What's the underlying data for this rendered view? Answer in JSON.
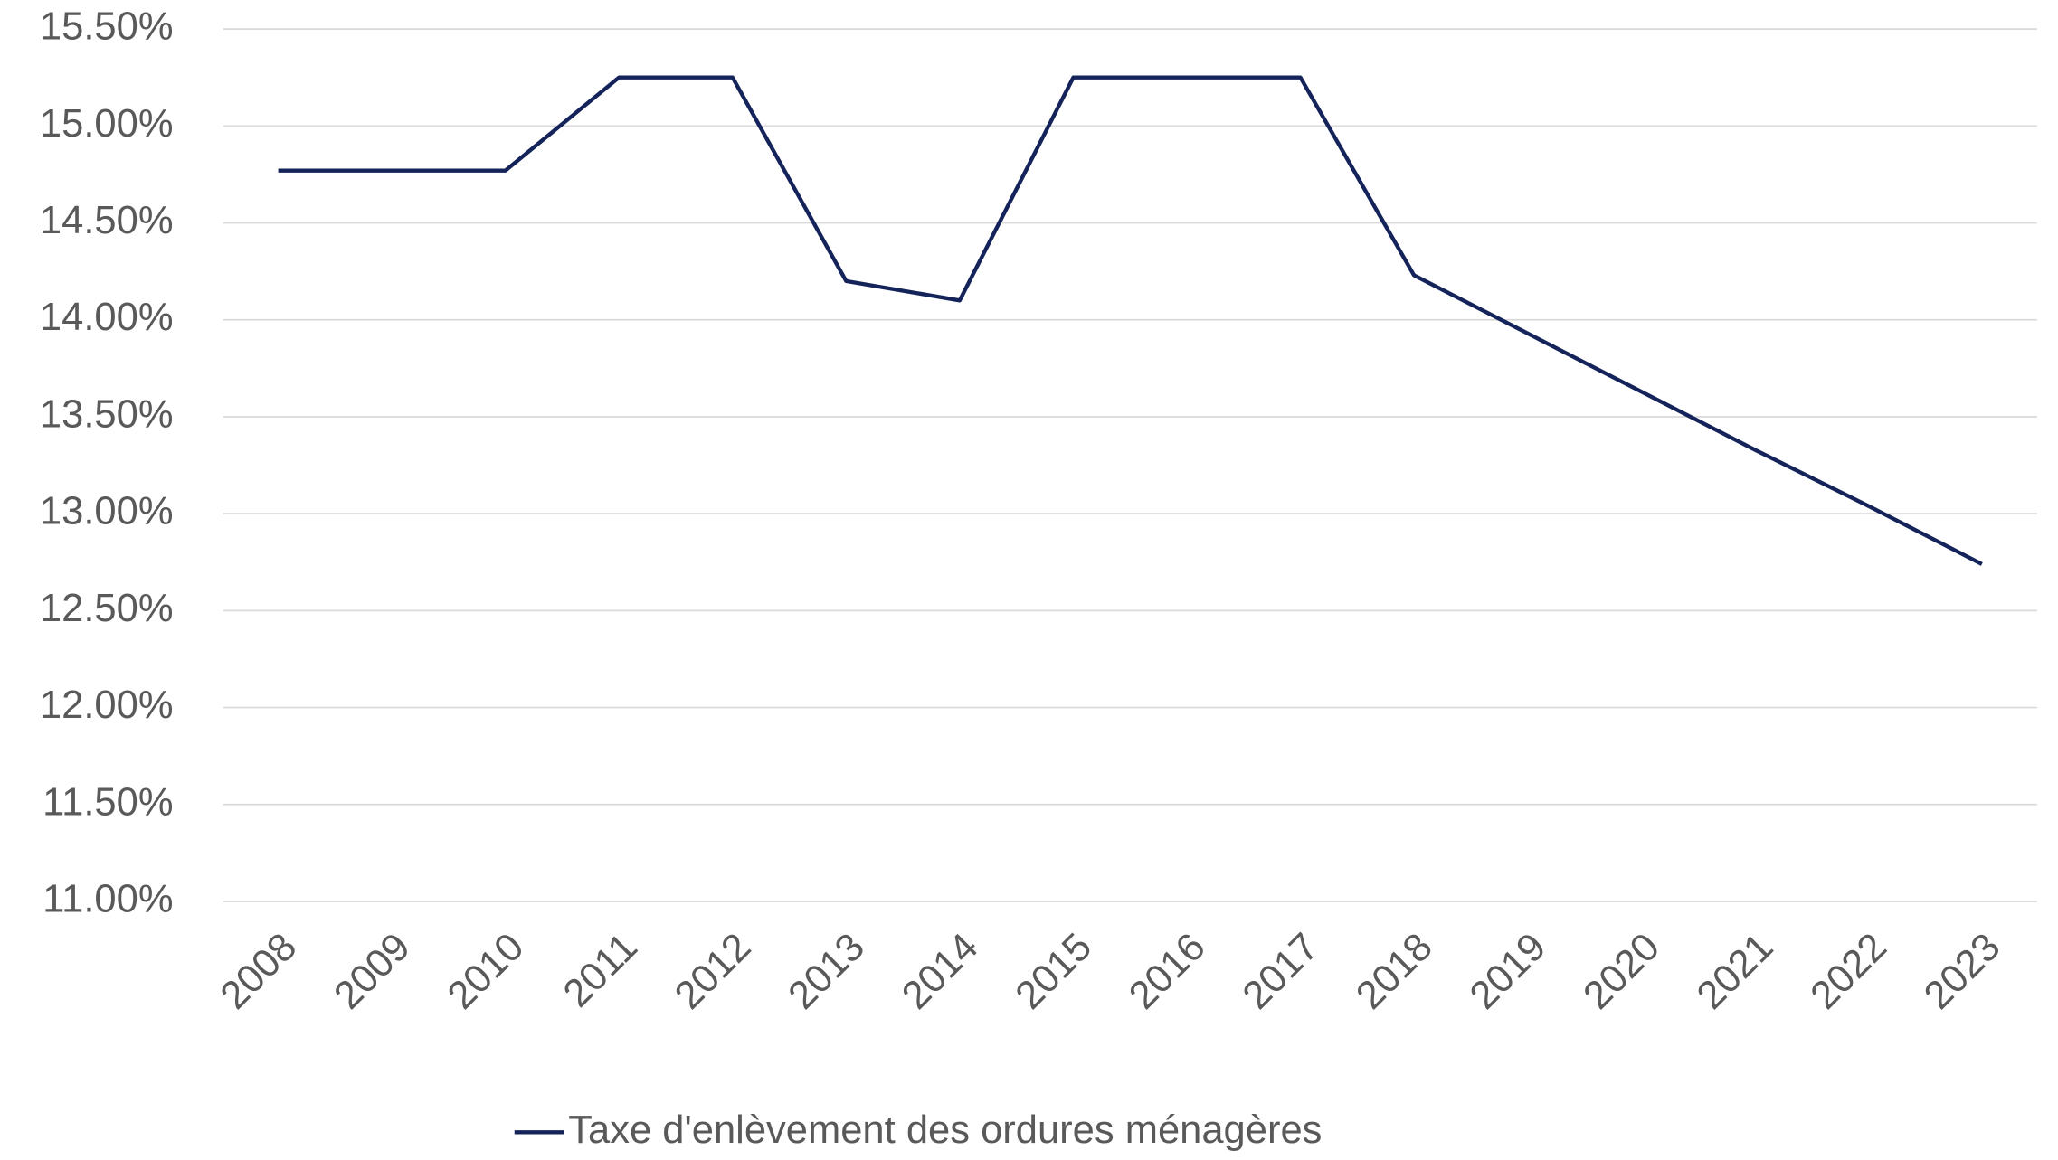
{
  "chart_data": {
    "type": "line",
    "categories": [
      "2008",
      "2009",
      "2010",
      "2011",
      "2012",
      "2013",
      "2014",
      "2015",
      "2016",
      "2017",
      "2018",
      "2019",
      "2020",
      "2021",
      "2022",
      "2023"
    ],
    "series": [
      {
        "name": "Taxe d'enlèvement des ordures ménagères",
        "color": "#14235a",
        "values": [
          14.77,
          14.77,
          14.77,
          15.25,
          15.25,
          14.2,
          14.1,
          15.25,
          15.25,
          15.25,
          14.23,
          13.93,
          13.63,
          13.33,
          13.04,
          12.74
        ]
      }
    ],
    "ylim": [
      11,
      15.5
    ],
    "yticks": [
      {
        "value": 11,
        "label": "11.00%"
      },
      {
        "value": 11.5,
        "label": "11.50%"
      },
      {
        "value": 12,
        "label": "12.00%"
      },
      {
        "value": 12.5,
        "label": "12.50%"
      },
      {
        "value": 13,
        "label": "13.00%"
      },
      {
        "value": 13.5,
        "label": "13.50%"
      },
      {
        "value": 14,
        "label": "14.00%"
      },
      {
        "value": 14.5,
        "label": "14.50%"
      },
      {
        "value": 15,
        "label": "15.00%"
      },
      {
        "value": 15.5,
        "label": "15.50%"
      }
    ],
    "grid": true,
    "legend": "bottom"
  }
}
